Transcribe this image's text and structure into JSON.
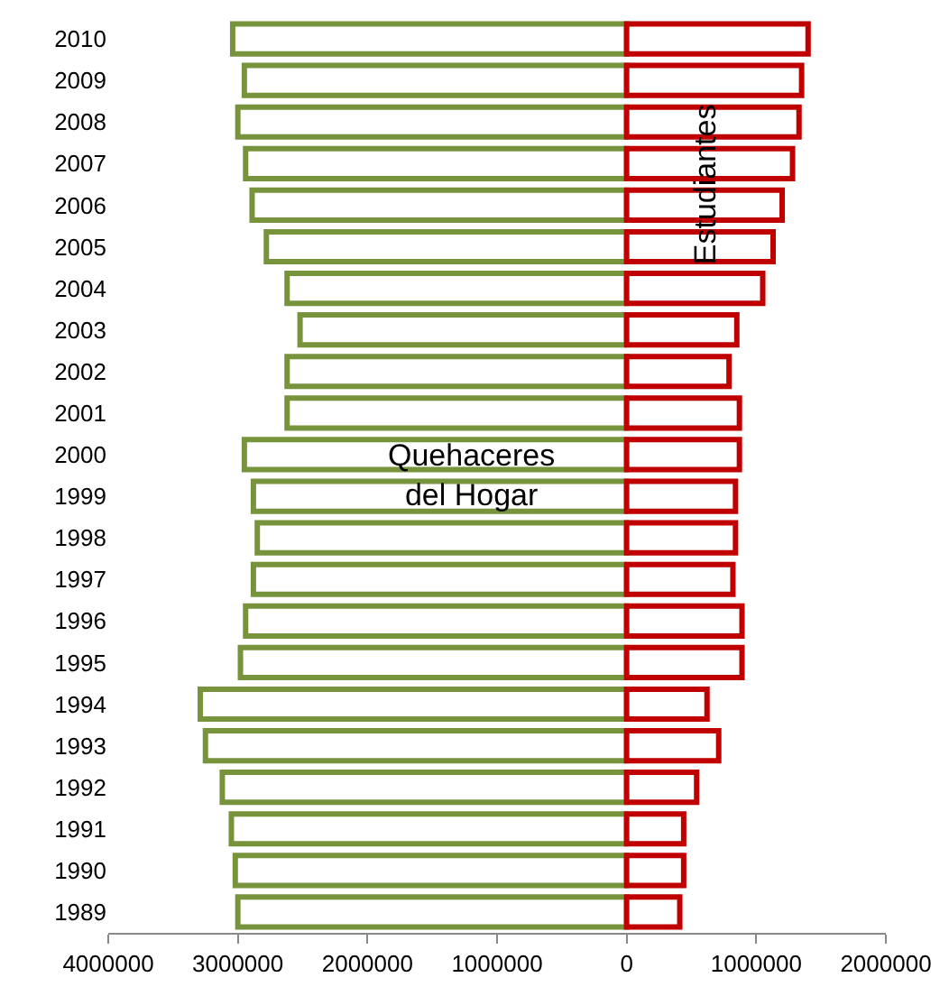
{
  "chart_data": {
    "type": "bar",
    "orientation": "horizontal",
    "stacked": true,
    "categories": [
      "2010",
      "2009",
      "2008",
      "2007",
      "2006",
      "2005",
      "2004",
      "2003",
      "2002",
      "2001",
      "2000",
      "1999",
      "1998",
      "1997",
      "1996",
      "1995",
      "1994",
      "1993",
      "1992",
      "1991",
      "1990",
      "1989"
    ],
    "series": [
      {
        "name": "Quehaceres del Hogar",
        "color": "#77933c",
        "values": [
          -3040000,
          -2950000,
          -3000000,
          -2940000,
          -2890000,
          -2780000,
          -2620000,
          -2520000,
          -2620000,
          -2620000,
          -2950000,
          -2880000,
          -2850000,
          -2880000,
          -2940000,
          -2980000,
          -3290000,
          -3250000,
          -3120000,
          -3050000,
          -3020000,
          -3000000
        ]
      },
      {
        "name": "Estudiantes",
        "color": "#c00000",
        "values": [
          1400000,
          1350000,
          1330000,
          1280000,
          1200000,
          1130000,
          1050000,
          850000,
          790000,
          870000,
          870000,
          840000,
          840000,
          820000,
          890000,
          890000,
          620000,
          710000,
          540000,
          440000,
          440000,
          410000
        ]
      }
    ],
    "xlim": [
      -4000000,
      2000000
    ],
    "xticks": [
      {
        "value": -4000000,
        "label": "4000000"
      },
      {
        "value": -3000000,
        "label": "3000000"
      },
      {
        "value": -2000000,
        "label": "2000000"
      },
      {
        "value": -1000000,
        "label": "1000000"
      },
      0,
      1000000,
      2000000
    ],
    "legend": false
  }
}
